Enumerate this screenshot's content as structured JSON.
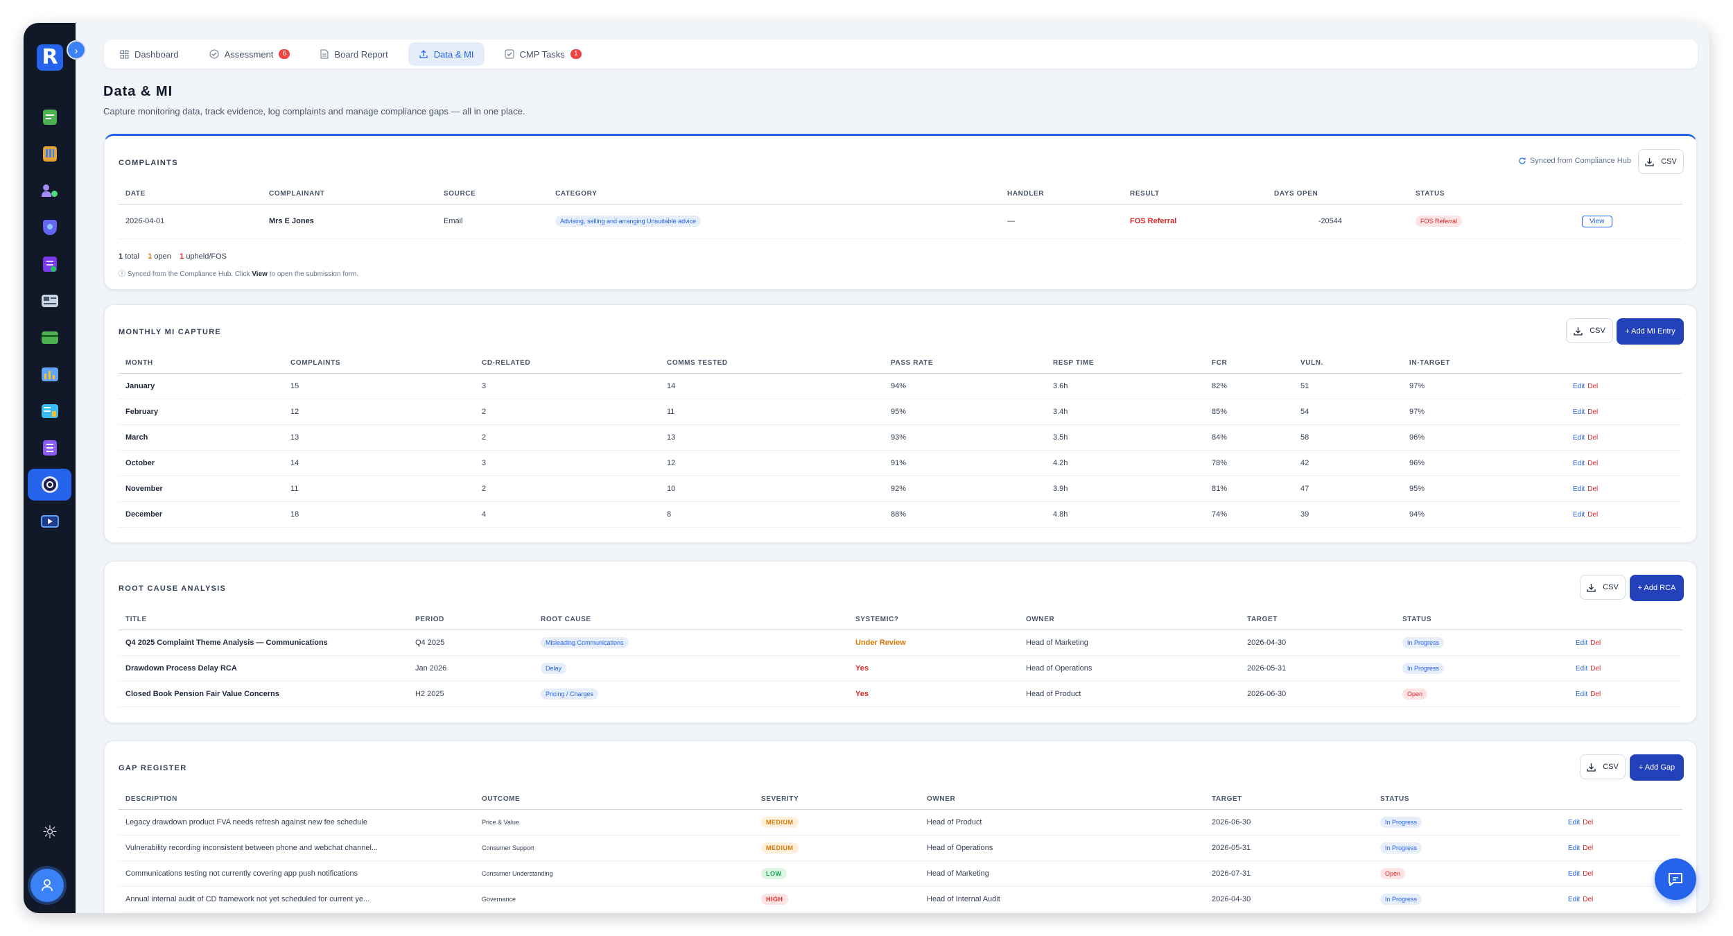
{
  "tabs": [
    {
      "label": "Dashboard",
      "icon": "grid-icon"
    },
    {
      "label": "Assessment",
      "icon": "check-circle-icon",
      "badge": "6"
    },
    {
      "label": "Board Report",
      "icon": "document-icon"
    },
    {
      "label": "Data & MI",
      "icon": "upload-icon",
      "active": true
    },
    {
      "label": "CMP Tasks",
      "icon": "checkbox-icon",
      "badge": "1"
    }
  ],
  "page": {
    "title": "Data & MI",
    "subtitle": "Capture monitoring data, track evidence, log complaints and manage compliance gaps — all in one place."
  },
  "complaints": {
    "title": "COMPLAINTS",
    "sync_label": "Synced from Compliance Hub",
    "csv_label": "CSV",
    "headers": [
      "DATE",
      "COMPLAINANT",
      "SOURCE",
      "CATEGORY",
      "HANDLER",
      "RESULT",
      "DAYS OPEN",
      "STATUS",
      ""
    ],
    "rows": [
      {
        "date": "2026-04-01",
        "complainant": "Mrs E Jones",
        "source": "Email",
        "category": "Advising, selling and arranging Unsuitable advice",
        "handler": "—",
        "result": "FOS Referral",
        "days_open": "-20544",
        "status": "FOS Referral",
        "action": "View"
      }
    ],
    "summary": {
      "total_n": "1",
      "total_l": "total",
      "open_n": "1",
      "open_l": "open",
      "fos_n": "1",
      "fos_l": "upheld/FOS"
    },
    "note_pre": "Synced from the Compliance Hub. Click",
    "note_view": "View",
    "note_post": "to open the submission form."
  },
  "mi": {
    "title": "MONTHLY MI CAPTURE",
    "csv_label": "CSV",
    "add_label": "+ Add MI Entry",
    "headers": [
      "MONTH",
      "COMPLAINTS",
      "CD-RELATED",
      "COMMS TESTED",
      "PASS RATE",
      "RESP TIME",
      "FCR",
      "VULN.",
      "IN-TARGET",
      ""
    ],
    "rows": [
      [
        "January",
        "15",
        "3",
        "14",
        "94%",
        "3.6h",
        "82%",
        "51",
        "97%"
      ],
      [
        "February",
        "12",
        "2",
        "11",
        "95%",
        "3.4h",
        "85%",
        "54",
        "97%"
      ],
      [
        "March",
        "13",
        "2",
        "13",
        "93%",
        "3.5h",
        "84%",
        "58",
        "96%"
      ],
      [
        "October",
        "14",
        "3",
        "12",
        "91%",
        "4.2h",
        "78%",
        "42",
        "96%"
      ],
      [
        "November",
        "11",
        "2",
        "10",
        "92%",
        "3.9h",
        "81%",
        "47",
        "95%"
      ],
      [
        "December",
        "18",
        "4",
        "8",
        "88%",
        "4.8h",
        "74%",
        "39",
        "94%"
      ]
    ],
    "edit": "Edit",
    "del": "Del"
  },
  "rca": {
    "title": "ROOT CAUSE ANALYSIS",
    "csv_label": "CSV",
    "add_label": "+ Add RCA",
    "headers": [
      "TITLE",
      "PERIOD",
      "ROOT CAUSE",
      "SYSTEMIC?",
      "OWNER",
      "TARGET",
      "STATUS",
      ""
    ],
    "rows": [
      {
        "title": "Q4 2025 Complaint Theme Analysis — Communications",
        "period": "Q4 2025",
        "cause": "Misleading Communications",
        "systemic": "Under Review",
        "owner": "Head of Marketing",
        "target": "2026-04-30",
        "status": "In Progress"
      },
      {
        "title": "Drawdown Process Delay RCA",
        "period": "Jan 2026",
        "cause": "Delay",
        "systemic": "Yes",
        "owner": "Head of Operations",
        "target": "2026-05-31",
        "status": "In Progress"
      },
      {
        "title": "Closed Book Pension Fair Value Concerns",
        "period": "H2 2025",
        "cause": "Pricing / Charges",
        "systemic": "Yes",
        "owner": "Head of Product",
        "target": "2026-06-30",
        "status": "Open"
      }
    ],
    "edit": "Edit",
    "del": "Del"
  },
  "gap": {
    "title": "GAP REGISTER",
    "csv_label": "CSV",
    "add_label": "+ Add Gap",
    "headers": [
      "DESCRIPTION",
      "OUTCOME",
      "SEVERITY",
      "OWNER",
      "TARGET",
      "STATUS",
      ""
    ],
    "rows": [
      {
        "desc": "Legacy drawdown product FVA needs refresh against new fee schedule",
        "outcome": "Price & Value",
        "severity": "MEDIUM",
        "owner": "Head of Product",
        "target": "2026-06-30",
        "status": "In Progress"
      },
      {
        "desc": "Vulnerability recording inconsistent between phone and webchat channel...",
        "outcome": "Consumer Support",
        "severity": "MEDIUM",
        "owner": "Head of Operations",
        "target": "2026-05-31",
        "status": "In Progress"
      },
      {
        "desc": "Communications testing not currently covering app push notifications",
        "outcome": "Consumer Understanding",
        "severity": "LOW",
        "owner": "Head of Marketing",
        "target": "2026-07-31",
        "status": "Open"
      },
      {
        "desc": "Annual internal audit of CD framework not yet scheduled for current ye...",
        "outcome": "Governance",
        "severity": "HIGH",
        "owner": "Head of Internal Audit",
        "target": "2026-04-30",
        "status": "In Progress"
      }
    ],
    "edit": "Edit",
    "del": "Del"
  },
  "colors": {
    "accent": "#2563eb",
    "sidebar": "#111827",
    "danger": "#dc2626",
    "warning": "#d97706",
    "success": "#16a34a"
  }
}
